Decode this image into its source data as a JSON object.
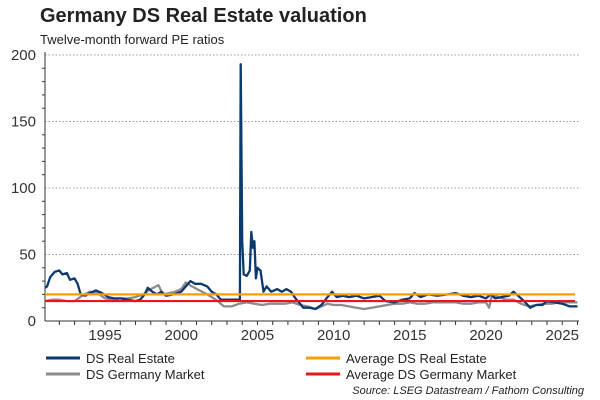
{
  "chart_data": {
    "type": "line",
    "title": "Germany DS Real Estate valuation",
    "subtitle": "Twelve-month forward PE ratios",
    "source": "Source: LSEG Datastream / Fathom Consulting",
    "xlabel": "",
    "ylabel": "",
    "xlim": [
      1991.06,
      2026.1
    ],
    "ylim": [
      0,
      200
    ],
    "x_ticks": [
      1995,
      2000,
      2005,
      2010,
      2015,
      2020,
      2025
    ],
    "y_ticks": [
      0,
      50,
      100,
      150,
      200
    ],
    "grid": "horizontal dotted",
    "legend_placement": "bottom",
    "series": [
      {
        "name": "DS Real Estate",
        "color": "#0b3a6e",
        "points": [
          [
            1991.06,
            25
          ],
          [
            1991.2,
            26
          ],
          [
            1991.4,
            33
          ],
          [
            1991.7,
            37
          ],
          [
            1992.0,
            38
          ],
          [
            1992.2,
            35
          ],
          [
            1992.5,
            36
          ],
          [
            1992.7,
            31
          ],
          [
            1993.0,
            32
          ],
          [
            1993.2,
            28
          ],
          [
            1993.4,
            20
          ],
          [
            1993.7,
            19
          ],
          [
            1994.0,
            21
          ],
          [
            1994.4,
            23
          ],
          [
            1994.8,
            21
          ],
          [
            1995.2,
            18
          ],
          [
            1995.6,
            17
          ],
          [
            1996.0,
            17
          ],
          [
            1996.5,
            16
          ],
          [
            1997.0,
            15
          ],
          [
            1997.3,
            16
          ],
          [
            1997.6,
            20
          ],
          [
            1997.8,
            25
          ],
          [
            1998.1,
            22
          ],
          [
            1998.4,
            20
          ],
          [
            1998.7,
            22
          ],
          [
            1999.0,
            19
          ],
          [
            1999.5,
            20
          ],
          [
            2000.0,
            22
          ],
          [
            2000.3,
            26
          ],
          [
            2000.6,
            30
          ],
          [
            2000.9,
            28
          ],
          [
            2001.3,
            28
          ],
          [
            2001.7,
            26
          ],
          [
            2002.0,
            22
          ],
          [
            2002.3,
            20
          ],
          [
            2002.6,
            16
          ],
          [
            2003.0,
            16
          ],
          [
            2003.5,
            16
          ],
          [
            2003.85,
            16
          ],
          [
            2003.9,
            193
          ],
          [
            2004.0,
            60
          ],
          [
            2004.1,
            35
          ],
          [
            2004.3,
            34
          ],
          [
            2004.5,
            38
          ],
          [
            2004.6,
            67
          ],
          [
            2004.7,
            55
          ],
          [
            2004.8,
            60
          ],
          [
            2004.9,
            32
          ],
          [
            2005.0,
            40
          ],
          [
            2005.2,
            38
          ],
          [
            2005.4,
            22
          ],
          [
            2005.6,
            26
          ],
          [
            2005.9,
            22
          ],
          [
            2006.3,
            24
          ],
          [
            2006.6,
            22
          ],
          [
            2006.9,
            24
          ],
          [
            2007.2,
            22
          ],
          [
            2007.5,
            17
          ],
          [
            2007.8,
            13
          ],
          [
            2008.0,
            10
          ],
          [
            2008.4,
            10
          ],
          [
            2008.8,
            9
          ],
          [
            2009.2,
            12
          ],
          [
            2009.6,
            18
          ],
          [
            2009.9,
            22
          ],
          [
            2010.2,
            18
          ],
          [
            2010.6,
            19
          ],
          [
            2011.0,
            18
          ],
          [
            2011.5,
            19
          ],
          [
            2012.0,
            17
          ],
          [
            2012.5,
            18
          ],
          [
            2013.0,
            19
          ],
          [
            2013.4,
            15
          ],
          [
            2014.0,
            14
          ],
          [
            2014.5,
            16
          ],
          [
            2015.0,
            17
          ],
          [
            2015.3,
            21
          ],
          [
            2015.7,
            18
          ],
          [
            2016.2,
            20
          ],
          [
            2016.8,
            19
          ],
          [
            2017.5,
            20
          ],
          [
            2018.0,
            21
          ],
          [
            2018.5,
            19
          ],
          [
            2019.0,
            18
          ],
          [
            2019.5,
            19
          ],
          [
            2020.0,
            17
          ],
          [
            2020.3,
            20
          ],
          [
            2020.6,
            17
          ],
          [
            2021.0,
            18
          ],
          [
            2021.5,
            19
          ],
          [
            2021.8,
            22
          ],
          [
            2022.1,
            19
          ],
          [
            2022.5,
            15
          ],
          [
            2022.9,
            10
          ],
          [
            2023.3,
            12
          ],
          [
            2023.7,
            12
          ],
          [
            2024.0,
            15
          ],
          [
            2024.5,
            14
          ],
          [
            2025.0,
            13
          ],
          [
            2025.5,
            11
          ],
          [
            2026.0,
            11
          ]
        ]
      },
      {
        "name": "DS Germany Market",
        "color": "#8c8c8c",
        "points": [
          [
            1991.06,
            15
          ],
          [
            1991.5,
            16
          ],
          [
            1992.0,
            16
          ],
          [
            1992.5,
            15
          ],
          [
            1993.0,
            15
          ],
          [
            1993.5,
            19
          ],
          [
            1994.0,
            22
          ],
          [
            1994.5,
            21
          ],
          [
            1995.0,
            17
          ],
          [
            1995.5,
            16
          ],
          [
            1996.0,
            17
          ],
          [
            1996.5,
            17
          ],
          [
            1997.0,
            18
          ],
          [
            1997.5,
            20
          ],
          [
            1998.0,
            24
          ],
          [
            1998.5,
            27
          ],
          [
            1998.8,
            20
          ],
          [
            1999.2,
            21
          ],
          [
            1999.6,
            22
          ],
          [
            2000.0,
            24
          ],
          [
            2000.3,
            29
          ],
          [
            2000.7,
            26
          ],
          [
            2001.2,
            23
          ],
          [
            2001.7,
            20
          ],
          [
            2002.0,
            18
          ],
          [
            2002.4,
            15
          ],
          [
            2002.8,
            11
          ],
          [
            2003.3,
            11
          ],
          [
            2003.8,
            13
          ],
          [
            2004.3,
            14
          ],
          [
            2004.8,
            13
          ],
          [
            2005.3,
            12
          ],
          [
            2005.8,
            13
          ],
          [
            2006.3,
            13
          ],
          [
            2006.8,
            13
          ],
          [
            2007.3,
            14
          ],
          [
            2007.8,
            12
          ],
          [
            2008.3,
            11
          ],
          [
            2008.8,
            9
          ],
          [
            2009.2,
            11
          ],
          [
            2009.6,
            13
          ],
          [
            2010.0,
            12
          ],
          [
            2010.5,
            12
          ],
          [
            2011.0,
            11
          ],
          [
            2011.5,
            10
          ],
          [
            2012.0,
            9
          ],
          [
            2012.5,
            10
          ],
          [
            2013.0,
            11
          ],
          [
            2013.5,
            12
          ],
          [
            2014.0,
            13
          ],
          [
            2014.5,
            13
          ],
          [
            2015.0,
            14
          ],
          [
            2015.5,
            13
          ],
          [
            2016.0,
            13
          ],
          [
            2016.5,
            14
          ],
          [
            2017.0,
            14
          ],
          [
            2017.5,
            14
          ],
          [
            2018.0,
            14
          ],
          [
            2018.5,
            13
          ],
          [
            2019.0,
            13
          ],
          [
            2019.5,
            14
          ],
          [
            2020.0,
            14
          ],
          [
            2020.2,
            10
          ],
          [
            2020.4,
            20
          ],
          [
            2020.8,
            18
          ],
          [
            2021.3,
            16
          ],
          [
            2021.8,
            16
          ],
          [
            2022.3,
            13
          ],
          [
            2022.8,
            11
          ],
          [
            2023.3,
            12
          ],
          [
            2023.8,
            13
          ],
          [
            2024.3,
            13
          ],
          [
            2024.8,
            14
          ],
          [
            2025.3,
            14
          ],
          [
            2026.0,
            14
          ]
        ]
      },
      {
        "name": "Average DS Real Estate",
        "color": "#f5a000",
        "constant": 20
      },
      {
        "name": "Average DS Germany Market",
        "color": "#e8161b",
        "constant": 15
      }
    ]
  }
}
